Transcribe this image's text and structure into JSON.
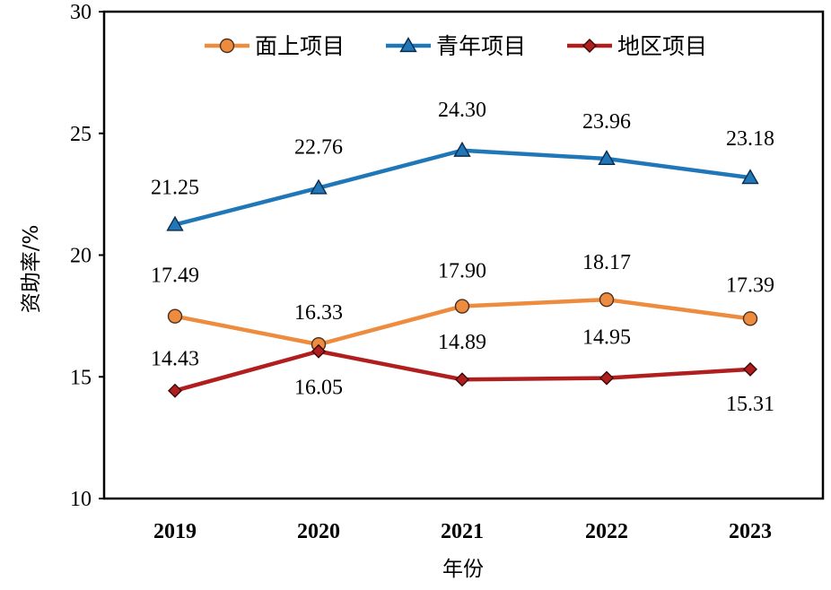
{
  "chart_data": {
    "type": "line",
    "categories": [
      "2019",
      "2020",
      "2021",
      "2022",
      "2023"
    ],
    "xlabel": "年份",
    "ylabel": "资助率/%",
    "ylim": [
      10,
      30
    ],
    "yticks": [
      10,
      15,
      20,
      25,
      30
    ],
    "grid": false,
    "legend_position": "top",
    "series": [
      {
        "name": "面上项目",
        "color": "#ED8B3F",
        "marker": "circle",
        "values": [
          17.49,
          16.33,
          17.9,
          18.17,
          17.39
        ],
        "labels": [
          "17.49",
          "16.33",
          "17.90",
          "18.17",
          "17.39"
        ]
      },
      {
        "name": "青年项目",
        "color": "#1F77B8",
        "marker": "triangle",
        "values": [
          21.25,
          22.76,
          24.3,
          23.96,
          23.18
        ],
        "labels": [
          "21.25",
          "22.76",
          "24.30",
          "23.96",
          "23.18"
        ]
      },
      {
        "name": "地区项目",
        "color": "#B01E1E",
        "marker": "diamond",
        "values": [
          14.43,
          16.05,
          14.89,
          14.95,
          15.31
        ],
        "labels": [
          "14.43",
          "16.05",
          "14.89",
          "14.95",
          "15.31"
        ]
      }
    ]
  }
}
